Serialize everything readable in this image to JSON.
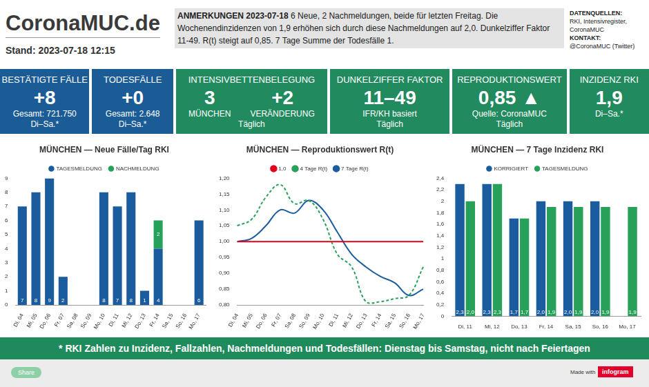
{
  "header": {
    "title": "CoronaMUC.de",
    "stand": "Stand: 2023-07-18 12:15",
    "notes_title": "ANMERKUNGEN 2023-07-18",
    "notes": "6 Neue, 2 Nachmeldungen, beide für letzten Freitag. Die Wochenendinzidenzen von 1,9 erhöhen sich durch diese Nachmeldungen auf 2,0. Dunkelziffer Faktor 11-49. R(t) steigt auf 0,85. 7 Tage Summe der Todesfälle 1.",
    "sources_title": "DATENQUELLEN:",
    "sources": "RKI, Intensivregister, CoronaMUC",
    "contact_title": "KONTAKT:",
    "contact": "@CoronaMUC (Twitter)"
  },
  "kpis": [
    {
      "title": "BESTÄTIGTE FÄLLE",
      "value": "+8",
      "lines": [
        "Gesamt: 721.750",
        "Di–Sa.*"
      ],
      "color": "#1b5c96"
    },
    {
      "title": "TODESFÄLLE",
      "value": "+0",
      "lines": [
        "Gesamt: 2.648",
        "Di–Sa.*"
      ],
      "color": "#1b5c96"
    },
    {
      "title": "INTENSIVBETTENBELEGUNG",
      "values": [
        {
          "value": "3",
          "label": "MÜNCHEN"
        },
        {
          "value": "+2",
          "label": "VERÄNDERUNG"
        }
      ],
      "lines": [
        "Täglich"
      ],
      "color": "#218a5e"
    },
    {
      "title": "DUNKELZIFFER FAKTOR",
      "value": "11–49",
      "lines": [
        "IFR/KH basiert",
        "Täglich"
      ],
      "color": "#218a5e"
    },
    {
      "title": "REPRODUKTIONSWERT",
      "value": "0,85 ▲",
      "lines": [
        "Quelle: CoronaMUC",
        "Täglich"
      ],
      "color": "#218a5e"
    },
    {
      "title": "INZIDENZ RKI",
      "value": "1,9",
      "lines": [
        "Di–Sa.*"
      ],
      "color": "#218a5e"
    }
  ],
  "footer": "* RKI Zahlen zu Inzidenz, Fallzahlen, Nachmeldungen und Todesfällen: Dienstag bis Samstag, nicht nach Feiertagen",
  "share": "Share",
  "made_with": "Made with",
  "brand": "infogram",
  "chart_data": [
    {
      "type": "bar",
      "title": "MÜNCHEN — Neue Fälle/Tag RKI",
      "stacked": true,
      "categories": [
        "Di, 04",
        "Mi, 05",
        "Do, 06",
        "Fr, 07",
        "Sa, 08",
        "So, 09",
        "Mo, 10",
        "Di, 11",
        "Mi, 12",
        "Do, 13",
        "Fr, 14",
        "Sa, 15",
        "So, 16",
        "Mo, 17"
      ],
      "series": [
        {
          "name": "TAGESMELDUNG",
          "color": "#1b5c9e",
          "values": [
            7,
            8,
            9,
            2,
            null,
            null,
            8,
            7,
            8,
            1,
            4,
            null,
            null,
            6
          ]
        },
        {
          "name": "NACHMELDUNG",
          "color": "#27a05a",
          "values": [
            null,
            null,
            null,
            null,
            null,
            null,
            null,
            null,
            null,
            null,
            2,
            null,
            null,
            null
          ]
        }
      ],
      "ylim": [
        0,
        9
      ],
      "yticks": [
        0,
        1,
        2,
        3,
        4,
        5,
        6,
        7,
        8,
        9
      ],
      "grid": false,
      "legend": "top",
      "data_labels": true
    },
    {
      "type": "line",
      "title": "MÜNCHEN — Reproduktionswert R(t)",
      "categories": [
        "Di, 04",
        "Mi, 05",
        "Do, 06",
        "Fr, 07",
        "Sa, 08",
        "So, 09",
        "Mo, 10",
        "Di, 11",
        "Mi, 12",
        "Do, 13",
        "Fr, 14",
        "Sa, 15",
        "So, 16",
        "Mo, 17"
      ],
      "series": [
        {
          "name": "1,0",
          "color": "#e0001b",
          "line_style": "solid",
          "marker": "none",
          "values": [
            1.0,
            1.0,
            1.0,
            1.0,
            1.0,
            1.0,
            1.0,
            1.0,
            1.0,
            1.0,
            1.0,
            1.0,
            1.0,
            1.0
          ]
        },
        {
          "name": "4 Tage R(t)",
          "color": "#27a05a",
          "line_style": "dashed",
          "marker": "none",
          "values": [
            1.05,
            1.07,
            1.14,
            1.18,
            1.12,
            1.13,
            1.07,
            0.96,
            0.92,
            0.81,
            0.81,
            0.82,
            0.83,
            0.92
          ]
        },
        {
          "name": "7 Tage R(t)",
          "color": "#1b5c9e",
          "line_style": "solid",
          "marker": "none",
          "values": [
            1.0,
            1.01,
            1.05,
            1.1,
            1.09,
            1.13,
            1.1,
            1.03,
            0.96,
            0.92,
            0.89,
            0.87,
            0.83,
            0.85
          ]
        }
      ],
      "ylim": [
        0.8,
        1.2
      ],
      "yticks": [
        {
          "value": 0.8,
          "label": "0,80"
        },
        {
          "value": 0.85,
          "label": "0,85"
        },
        {
          "value": 0.9,
          "label": "0,90"
        },
        {
          "value": 0.95,
          "label": "0,95"
        },
        {
          "value": 1.0,
          "label": "1,00"
        },
        {
          "value": 1.05,
          "label": "1,05"
        },
        {
          "value": 1.1,
          "label": "1,10"
        },
        {
          "value": 1.15,
          "label": "1,15"
        },
        {
          "value": 1.2,
          "label": "1,20"
        }
      ],
      "grid": false,
      "legend": "top"
    },
    {
      "type": "bar",
      "title": "MÜNCHEN — 7 Tage Inzidenz RKI",
      "categories": [
        "Di, 11",
        "Mi, 12",
        "Do, 13",
        "Fr, 14",
        "Sa, 15",
        "So, 16",
        "Mo, 17"
      ],
      "series": [
        {
          "name": "KORRIGIERT",
          "color": "#1b5c9e",
          "values": [
            2.3,
            2.3,
            1.7,
            2.0,
            2.0,
            2.0,
            null
          ],
          "value_labels": [
            "2,3",
            "2,3",
            "1,7",
            "2,0",
            "2,0",
            "2,0",
            null
          ]
        },
        {
          "name": "TAGESMELDUNG",
          "color": "#27a05a",
          "values": [
            2.0,
            2.3,
            1.7,
            1.9,
            1.9,
            1.9,
            1.9
          ],
          "value_labels": [
            "2,0",
            "2,3",
            "1,7",
            "1,9",
            "1,9",
            "1,9",
            "1,9"
          ]
        }
      ],
      "ylim": [
        0,
        2.4
      ],
      "yticks": [
        0,
        {
          "value": 0.2,
          "label": "0,2"
        },
        {
          "value": 0.4,
          "label": "0,4"
        },
        {
          "value": 0.6,
          "label": "0,6"
        },
        {
          "value": 0.8,
          "label": "0,8"
        },
        1,
        {
          "value": 1.2,
          "label": "1,2"
        },
        {
          "value": 1.4,
          "label": "1,4"
        },
        {
          "value": 1.6,
          "label": "1,6"
        },
        {
          "value": 1.8,
          "label": "1,8"
        },
        2,
        {
          "value": 2.2,
          "label": "2,2"
        },
        {
          "value": 2.4,
          "label": "2,4"
        }
      ],
      "grid": false,
      "legend": "top",
      "data_labels": true
    }
  ]
}
